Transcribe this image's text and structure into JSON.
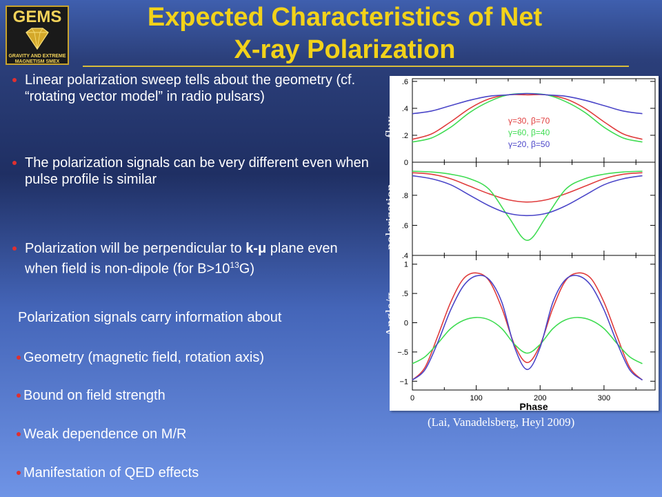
{
  "title": {
    "line1": "Expected Characteristics of Net",
    "line2": "X-ray Polarization"
  },
  "logo": {
    "name": "GEMS",
    "tagline": "GRAVITY AND EXTREME MAGNETISM SMEX"
  },
  "bullets": [
    {
      "text": "Linear polarization sweep tells about the geometry (cf. “rotating vector model” in radio pulsars)"
    },
    {
      "text": "The polarization signals can be very different even when pulse profile is similar"
    },
    {
      "pre": "Polarization will be perpendicular to ",
      "bold": "k-μ",
      "post1": " plane even when field is non-dipole (for B>10",
      "sup": "13",
      "post2": "G)"
    }
  ],
  "info_heading": "Polarization signals carry information about",
  "info_items": [
    "Geometry (magnetic field, rotation axis)",
    "Bound on field strength",
    "Weak dependence on M/R",
    "Manifestation of QED effects"
  ],
  "citation": "(Lai, Vanadelsberg, Heyl 2009)",
  "chart_data": {
    "type": "line",
    "xlabel": "Phase",
    "xlim": [
      0,
      380
    ],
    "xticks": [
      "0",
      "100",
      "200",
      "300"
    ],
    "colors": {
      "red": "#e03c3c",
      "green": "#3fdc52",
      "blue": "#4a45c8"
    },
    "legend": {
      "placement": "center",
      "entries": [
        {
          "label": "γ=30,  β=70",
          "color": "#e03c3c"
        },
        {
          "label": "γ=60,  β=40",
          "color": "#3fdc52"
        },
        {
          "label": "γ=20,  β=50",
          "color": "#4a45c8"
        }
      ]
    },
    "panels": [
      {
        "ylabel": "flux",
        "ylim": [
          0,
          0.62
        ],
        "yticks": [
          0,
          0.2,
          0.4,
          0.6
        ],
        "ytick_labels": [
          "0",
          ".2",
          ".4",
          ".6"
        ],
        "x": [
          0,
          30,
          60,
          90,
          120,
          150,
          180,
          210,
          240,
          270,
          300,
          330,
          360
        ],
        "series": [
          {
            "color": "red",
            "values": [
              0.17,
              0.21,
              0.3,
              0.4,
              0.47,
              0.5,
              0.5,
              0.5,
              0.47,
              0.4,
              0.3,
              0.21,
              0.17
            ]
          },
          {
            "color": "green",
            "values": [
              0.15,
              0.18,
              0.26,
              0.37,
              0.45,
              0.5,
              0.51,
              0.5,
              0.45,
              0.37,
              0.26,
              0.18,
              0.15
            ]
          },
          {
            "color": "blue",
            "values": [
              0.36,
              0.38,
              0.42,
              0.46,
              0.49,
              0.5,
              0.51,
              0.5,
              0.49,
              0.46,
              0.42,
              0.38,
              0.36
            ]
          }
        ]
      },
      {
        "ylabel": "polarization",
        "ylim": [
          0.4,
          1.02
        ],
        "yticks": [
          0.4,
          0.6,
          0.8
        ],
        "ytick_labels": [
          ".4",
          ".6",
          ".8"
        ],
        "x": [
          0,
          30,
          60,
          90,
          120,
          150,
          180,
          210,
          240,
          270,
          300,
          330,
          360
        ],
        "series": [
          {
            "color": "red",
            "values": [
              0.95,
              0.94,
              0.91,
              0.86,
              0.81,
              0.77,
              0.755,
              0.77,
              0.81,
              0.86,
              0.91,
              0.94,
              0.95
            ]
          },
          {
            "color": "green",
            "values": [
              0.96,
              0.955,
              0.94,
              0.91,
              0.84,
              0.66,
              0.5,
              0.66,
              0.84,
              0.91,
              0.94,
              0.955,
              0.96
            ]
          },
          {
            "color": "blue",
            "values": [
              0.93,
              0.91,
              0.87,
              0.8,
              0.73,
              0.68,
              0.665,
              0.68,
              0.73,
              0.8,
              0.87,
              0.91,
              0.93
            ]
          }
        ]
      },
      {
        "ylabel": "Angle/π",
        "ylim": [
          -1.15,
          1.15
        ],
        "yticks": [
          -1,
          -0.5,
          0,
          0.5,
          1
        ],
        "ytick_labels": [
          "−1",
          "−.5",
          "0",
          ".5",
          "1"
        ],
        "x": [
          0,
          20,
          40,
          60,
          80,
          100,
          120,
          140,
          160,
          180,
          200,
          220,
          240,
          260,
          280,
          300,
          320,
          340,
          360
        ],
        "series": [
          {
            "color": "red",
            "values": [
              -0.98,
              -0.76,
              -0.22,
              0.35,
              0.75,
              0.85,
              0.72,
              0.25,
              -0.38,
              -0.68,
              -0.38,
              0.25,
              0.72,
              0.85,
              0.75,
              0.35,
              -0.22,
              -0.76,
              -0.98
            ]
          },
          {
            "color": "green",
            "values": [
              -0.7,
              -0.58,
              -0.35,
              -0.1,
              0.04,
              0.09,
              0.05,
              -0.1,
              -0.37,
              -0.52,
              -0.37,
              -0.1,
              0.05,
              0.09,
              0.04,
              -0.1,
              -0.35,
              -0.58,
              -0.7
            ]
          },
          {
            "color": "blue",
            "values": [
              -0.98,
              -0.8,
              -0.33,
              0.22,
              0.63,
              0.8,
              0.74,
              0.35,
              -0.42,
              -0.8,
              -0.42,
              0.35,
              0.74,
              0.8,
              0.63,
              0.22,
              -0.33,
              -0.8,
              -0.98
            ]
          }
        ]
      }
    ]
  }
}
